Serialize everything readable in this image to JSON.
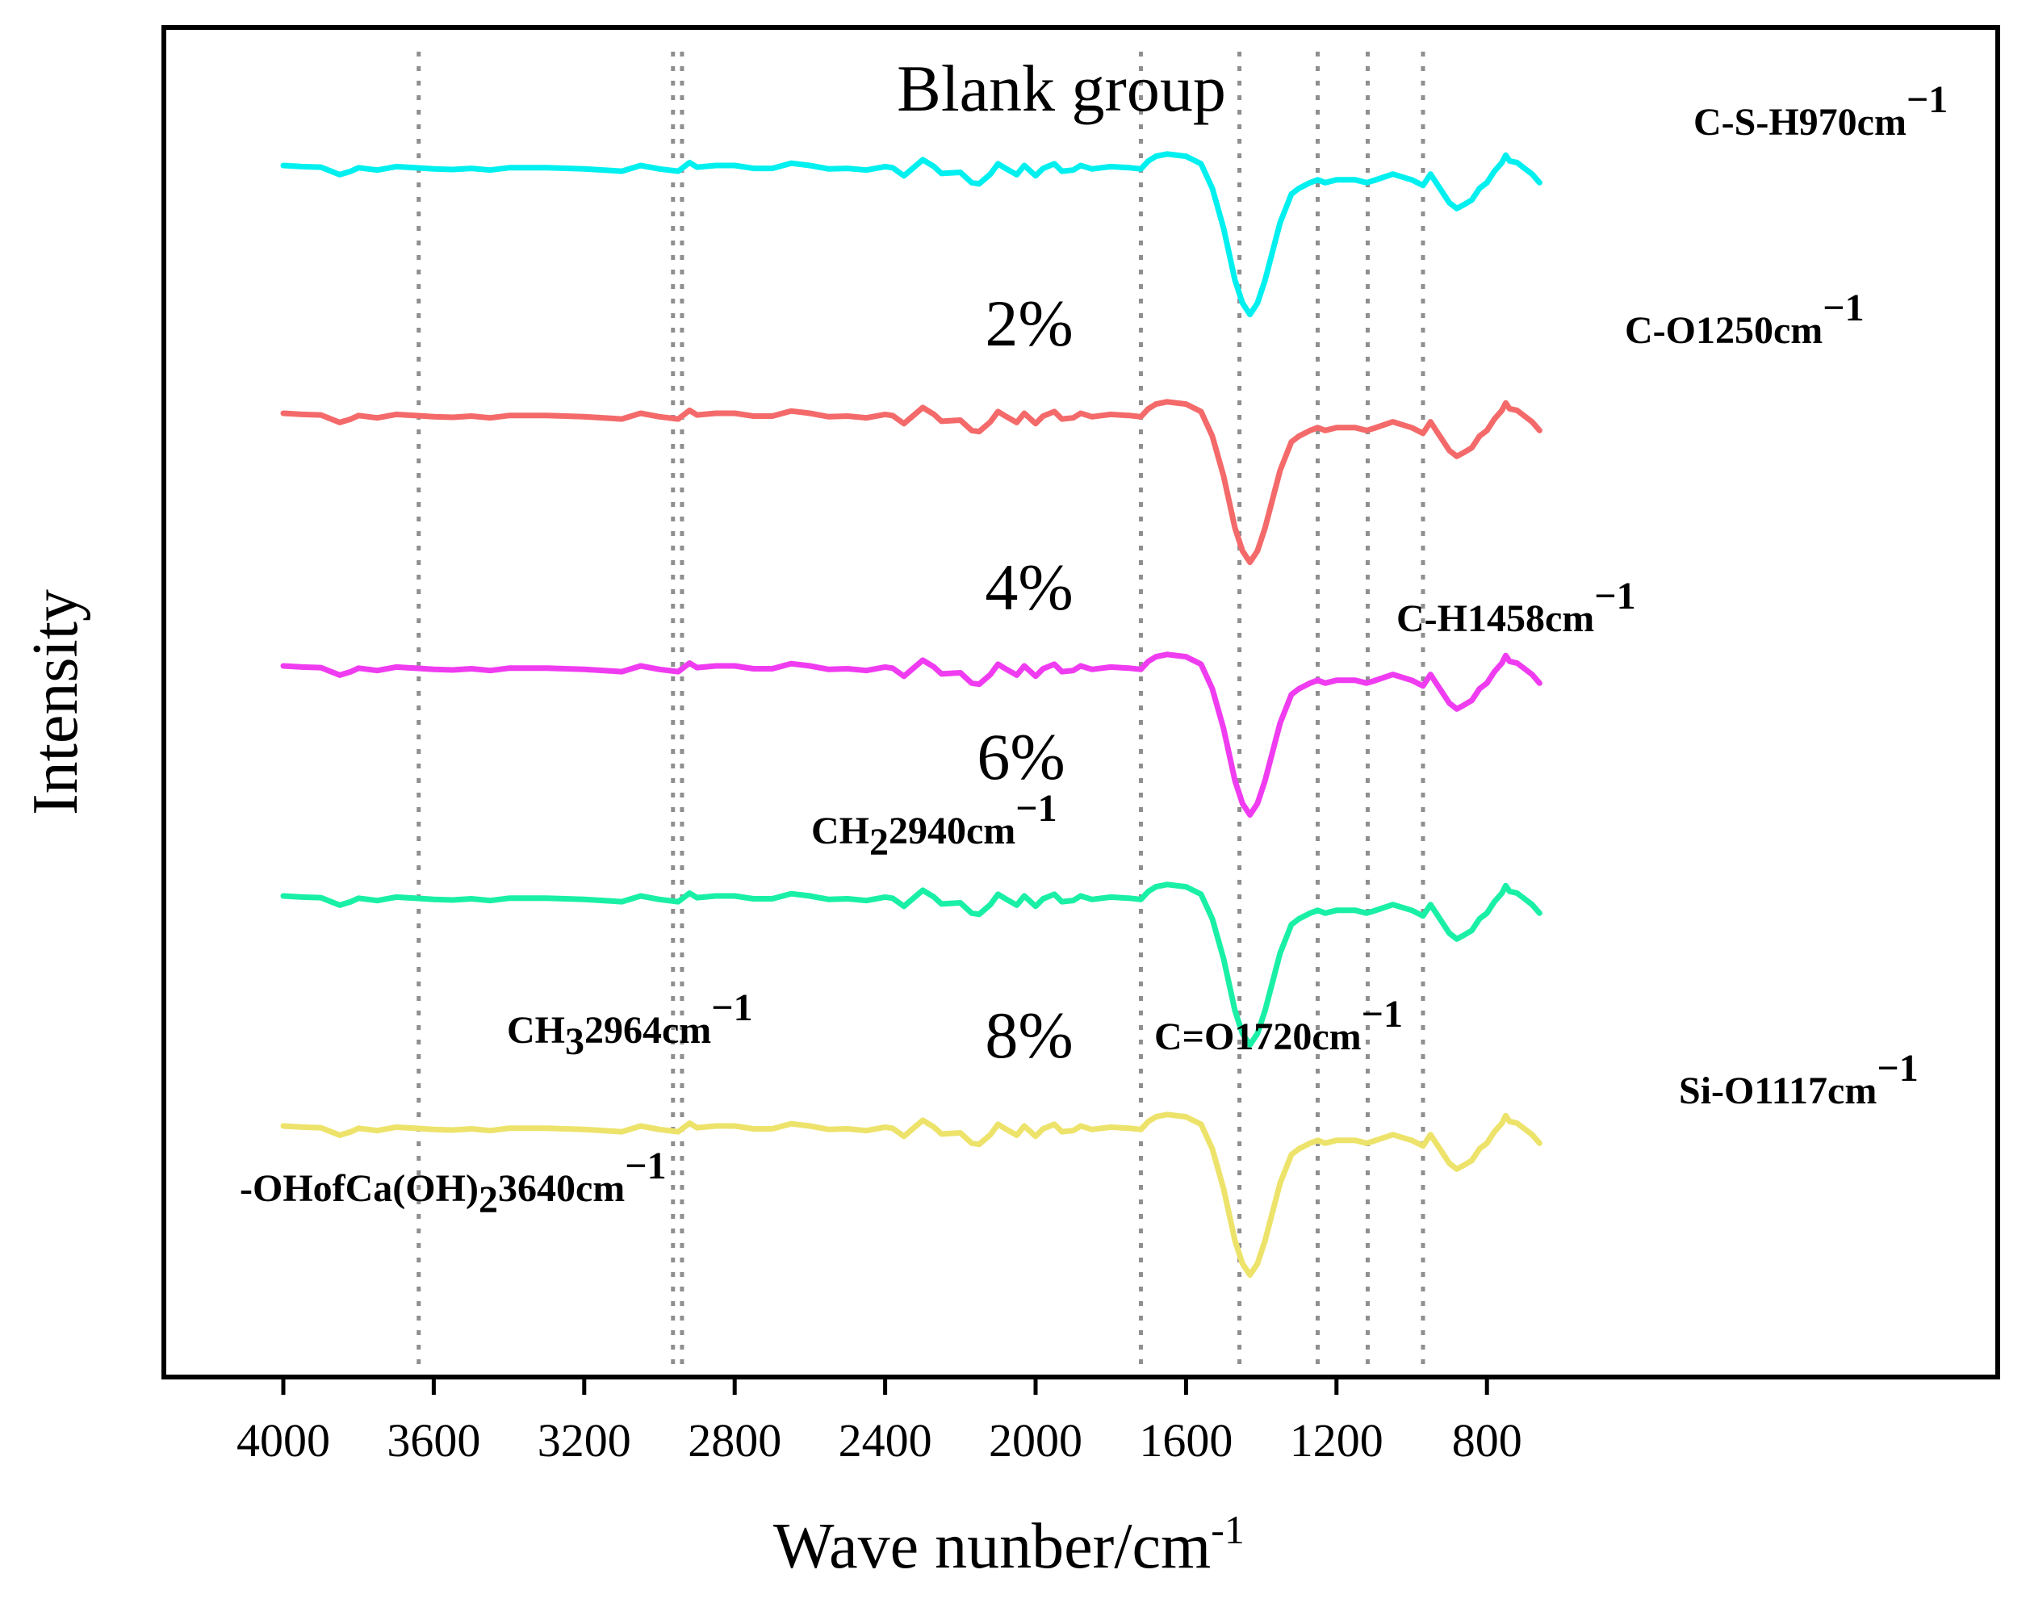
{
  "chart_data": {
    "type": "line",
    "xlabel": "Wave nunber/cm",
    "xlabel_sup": "-1",
    "ylabel": "Intensity",
    "xlim": [
      4200,
      630
    ],
    "x_ticks": [
      4000,
      3600,
      3200,
      2800,
      2400,
      2000,
      1600,
      1200,
      800
    ],
    "grid": false,
    "reference_lines": [
      3640,
      2964,
      2940,
      1720,
      1458,
      1250,
      1117,
      970
    ],
    "series": [
      {
        "name": "Blank group",
        "color": "#00f0f0"
      },
      {
        "name": "2%",
        "color": "#f46a6a"
      },
      {
        "name": "4%",
        "color": "#f03cf0"
      },
      {
        "name": "6%",
        "color": "#19f0a6"
      },
      {
        "name": "8%",
        "color": "#ede36b"
      }
    ],
    "spectrum_shape": {
      "x": [
        4000,
        3950,
        3900,
        3850,
        3820,
        3800,
        3750,
        3700,
        3650,
        3600,
        3550,
        3500,
        3450,
        3400,
        3300,
        3200,
        3100,
        3050,
        3000,
        2950,
        2920,
        2900,
        2850,
        2800,
        2750,
        2700,
        2650,
        2600,
        2550,
        2500,
        2450,
        2400,
        2380,
        2350,
        2300,
        2270,
        2250,
        2200,
        2170,
        2150,
        2120,
        2100,
        2080,
        2050,
        2030,
        2000,
        1980,
        1950,
        1930,
        1900,
        1880,
        1850,
        1800,
        1750,
        1720,
        1700,
        1680,
        1650,
        1600,
        1560,
        1530,
        1500,
        1470,
        1450,
        1430,
        1410,
        1390,
        1370,
        1350,
        1320,
        1300,
        1270,
        1250,
        1230,
        1200,
        1150,
        1120,
        1100,
        1050,
        1000,
        970,
        950,
        930,
        900,
        880,
        860,
        840,
        820,
        800,
        780,
        760,
        750,
        740,
        720,
        700,
        680,
        660
      ],
      "y": [
        0.0,
        0.2,
        0.3,
        1.6,
        1.0,
        0.4,
        0.8,
        0.2,
        0.4,
        0.6,
        0.7,
        0.5,
        0.8,
        0.4,
        0.4,
        0.6,
        1.0,
        0.0,
        0.6,
        1.0,
        -0.5,
        0.3,
        0.0,
        0.0,
        0.5,
        0.5,
        -0.4,
        0.0,
        0.6,
        0.5,
        0.8,
        0.2,
        0.4,
        1.8,
        -1.0,
        0.2,
        1.4,
        1.2,
        3.0,
        3.2,
        1.5,
        -0.3,
        0.5,
        1.6,
        0.0,
        1.8,
        0.5,
        -0.3,
        1.0,
        0.8,
        0.0,
        0.6,
        0.2,
        0.4,
        0.6,
        -0.8,
        -1.6,
        -2.0,
        -1.6,
        -0.3,
        4.0,
        11.0,
        20.0,
        24.0,
        26.0,
        24.0,
        20.0,
        15.0,
        10.0,
        5.0,
        4.0,
        3.0,
        2.5,
        3.0,
        2.5,
        2.5,
        3.0,
        2.6,
        1.5,
        2.5,
        3.5,
        1.5,
        3.5,
        6.5,
        7.5,
        6.8,
        6.0,
        4.0,
        3.0,
        1.0,
        -0.5,
        -1.8,
        -0.8,
        -0.5,
        0.5,
        1.5,
        3.0
      ]
    },
    "annotations": [
      {
        "text": "C-S-H970cm",
        "sup": "−1"
      },
      {
        "text": "C-O1250cm",
        "sup": "−1"
      },
      {
        "text": "C-H1458cm",
        "sup": "−1"
      },
      {
        "text": "CH",
        "sub": "2",
        "text2": "2940cm",
        "sup": "−1"
      },
      {
        "text": "CH",
        "sub": "3",
        "text2": "2964cm",
        "sup": "−1"
      },
      {
        "text": "C=O1720cm",
        "sup": "−1"
      },
      {
        "text": "Si-O1117cm",
        "sup": "−1"
      },
      {
        "text": "-OHofCa(OH)",
        "sub": "2",
        "text2": "3640cm",
        "sup": "−1"
      }
    ]
  }
}
